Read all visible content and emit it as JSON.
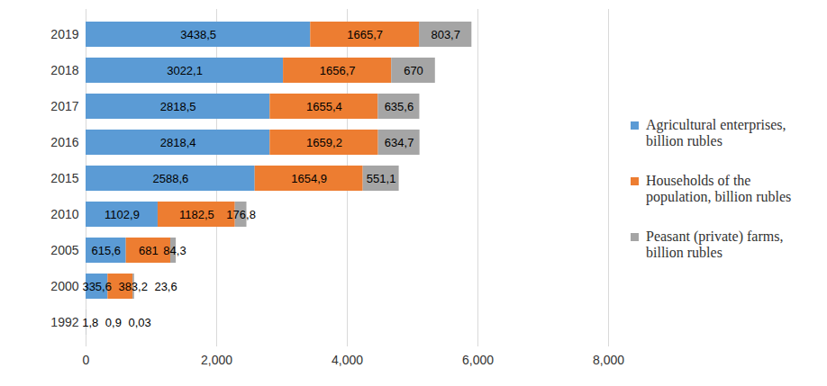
{
  "chart_data": {
    "type": "bar",
    "orientation": "horizontal",
    "stacked": true,
    "data_labels": true,
    "grid": true,
    "legend": "right",
    "categories": [
      "1992",
      "2000",
      "2005",
      "2010",
      "2015",
      "2016",
      "2017",
      "2018",
      "2019"
    ],
    "series": [
      {
        "name": "Agricultural enterprises, billion rubles",
        "color": "#5B9BD5",
        "values": [
          1.8,
          335.6,
          615.6,
          1102.9,
          2588.6,
          2818.4,
          2818.5,
          3022.1,
          3438.5
        ],
        "value_labels": [
          "1,8",
          "335,6",
          "615,6",
          "1102,9",
          "2588,6",
          "2818,4",
          "2818,5",
          "3022,1",
          "3438,5"
        ]
      },
      {
        "name": "Households of the population, billion rubles",
        "color": "#ED7D31",
        "values": [
          0.9,
          383.2,
          681,
          1182.5,
          1654.9,
          1659.2,
          1655.4,
          1656.7,
          1665.7
        ],
        "value_labels": [
          "0,9",
          "383,2",
          "681",
          "1182,5",
          "1654,9",
          "1659,2",
          "1655,4",
          "1656,7",
          "1665,7"
        ]
      },
      {
        "name": "Peasant (private) farms, billion rubles",
        "color": "#A5A5A5",
        "values": [
          0.03,
          23.6,
          84.3,
          176.8,
          551.1,
          634.7,
          635.6,
          670,
          803.7
        ],
        "value_labels": [
          "0,03",
          "23,6",
          "84,3",
          "176,8",
          "551,1",
          "634,7",
          "635,6",
          "670",
          "803,7"
        ]
      }
    ],
    "xlim": [
      0,
      8000
    ],
    "xticks": [
      0,
      2000,
      4000,
      6000,
      8000
    ]
  }
}
